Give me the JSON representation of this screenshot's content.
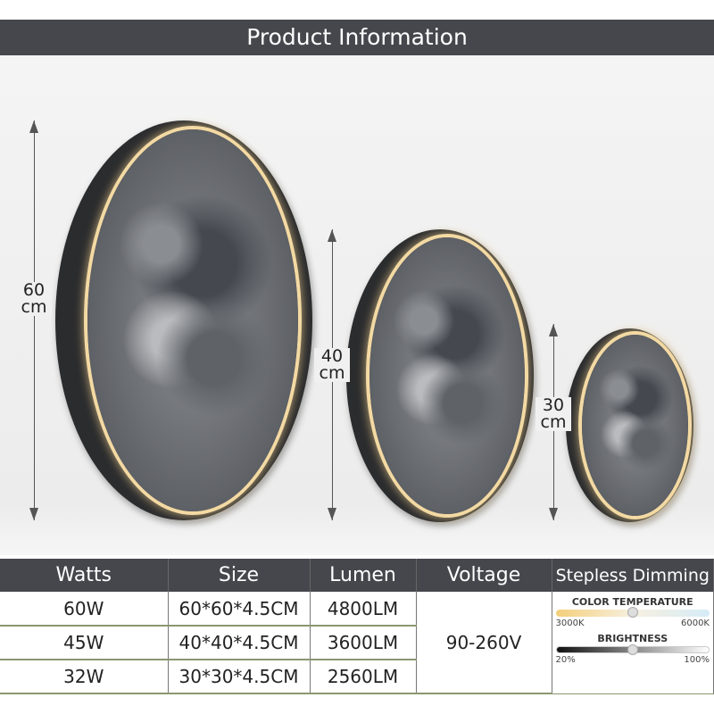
{
  "title": "Product Information",
  "sizes": [
    {
      "value": "60",
      "unit": "cm"
    },
    {
      "value": "40",
      "unit": "cm"
    },
    {
      "value": "30",
      "unit": "cm"
    }
  ],
  "table": {
    "headers": [
      "Watts",
      "Size",
      "Lumen",
      "Voltage",
      "Stepless Dimming"
    ],
    "rows": [
      [
        "60W",
        "60*60*4.5CM",
        "4800LM"
      ],
      [
        "45W",
        "40*40*4.5CM",
        "3600LM"
      ],
      [
        "32W",
        "30*30*4.5CM",
        "2560LM"
      ]
    ],
    "voltage": "90-260V",
    "dimming": {
      "color_temp_label": "COLOR TEMPERATURE",
      "ct_min": "3000K",
      "ct_max": "6000K",
      "ct_level": 0.5,
      "brightness_label": "BRIGHTNESS",
      "b_min": "20%",
      "b_max": "100%",
      "b_level": 0.5
    }
  },
  "colors": {
    "banner": "#45474d",
    "glow": "#f3d9a3"
  }
}
